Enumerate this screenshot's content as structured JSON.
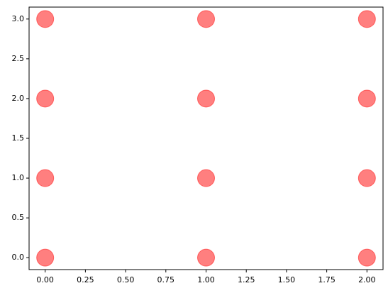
{
  "chart_data": {
    "type": "scatter",
    "series": [
      {
        "color": "#ff0000",
        "alpha": 0.5,
        "x": [
          0,
          0,
          0,
          0,
          1,
          1,
          1,
          1,
          2,
          2,
          2,
          2
        ],
        "values": [
          0,
          1,
          2,
          3,
          0,
          1,
          2,
          3,
          0,
          1,
          2,
          3
        ]
      }
    ],
    "xlim": [
      -0.1,
      2.1
    ],
    "ylim": [
      -0.15,
      3.15
    ],
    "xticks": [
      {
        "value": 0,
        "label": "0.00"
      },
      {
        "value": 0.25,
        "label": "0.25"
      },
      {
        "value": 0.5,
        "label": "0.50"
      },
      {
        "value": 0.75,
        "label": "0.75"
      },
      {
        "value": 1,
        "label": "1.00"
      },
      {
        "value": 1.25,
        "label": "1.25"
      },
      {
        "value": 1.5,
        "label": "1.50"
      },
      {
        "value": 1.75,
        "label": "1.75"
      },
      {
        "value": 2,
        "label": "2.00"
      }
    ],
    "yticks": [
      {
        "value": 0,
        "label": "0.0"
      },
      {
        "value": 0.5,
        "label": "0.5"
      },
      {
        "value": 1,
        "label": "1.0"
      },
      {
        "value": 1.5,
        "label": "1.5"
      },
      {
        "value": 2,
        "label": "2.0"
      },
      {
        "value": 2.5,
        "label": "2.5"
      },
      {
        "value": 3,
        "label": "3.0"
      }
    ],
    "grid": false
  }
}
